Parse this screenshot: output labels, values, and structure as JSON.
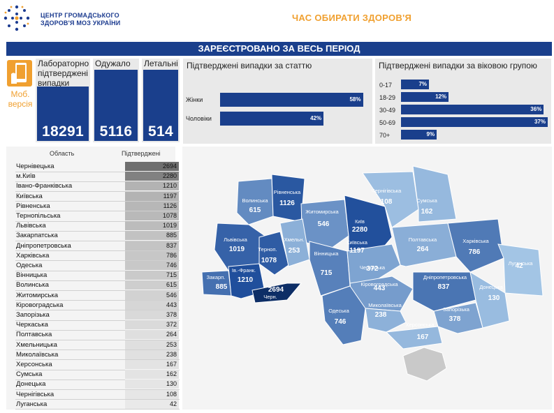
{
  "header": {
    "org_line1": "ЦЕНТР ГРОМАДСЬКОГО",
    "org_line2": "ЗДОРОВ'Я МОЗ УКРАЇНИ",
    "slogan": "ЧАС ОБИРАТИ ЗДОРОВ'Я",
    "banner": "ЗАРЕЄСТРОВАНО ЗА ВЕСЬ ПЕРІОД",
    "mobile_version": "Моб. версія"
  },
  "stats": {
    "confirmed": {
      "label": "Лабораторно підтверджені випадки",
      "value": "18291"
    },
    "recovered": {
      "label": "Одужало",
      "value": "5116"
    },
    "deaths": {
      "label": "Летальні",
      "value": "514"
    }
  },
  "colors": {
    "primary": "#1a3f8c",
    "accent": "#f0a030",
    "panel": "#e9e9e9"
  },
  "chart_data": [
    {
      "type": "bar",
      "title": "Підтверджені випадки за статтю",
      "categories": [
        "Жінки",
        "Чоловіки"
      ],
      "values": [
        58,
        42
      ],
      "value_labels": [
        "58%",
        "42%"
      ],
      "unit": "%"
    },
    {
      "type": "bar",
      "title": "Підтверджені випадки за віковою групою",
      "categories": [
        "0-17",
        "18-29",
        "30-49",
        "50-69",
        "70+"
      ],
      "values": [
        7,
        12,
        36,
        37,
        9
      ],
      "value_labels": [
        "7%",
        "12%",
        "36%",
        "37%",
        "9%"
      ],
      "unit": "%"
    },
    {
      "type": "table",
      "columns": [
        "Область",
        "Підтверджені"
      ],
      "rows": [
        [
          "Чернівецька",
          2694
        ],
        [
          "м.Київ",
          2280
        ],
        [
          "Івано-Франківська",
          1210
        ],
        [
          "Київська",
          1197
        ],
        [
          "Рівненська",
          1126
        ],
        [
          "Тернопільська",
          1078
        ],
        [
          "Львівська",
          1019
        ],
        [
          "Закарпатська",
          885
        ],
        [
          "Дніпропетровська",
          837
        ],
        [
          "Харківська",
          786
        ],
        [
          "Одеська",
          746
        ],
        [
          "Вінницька",
          715
        ],
        [
          "Волинська",
          615
        ],
        [
          "Житомирська",
          546
        ],
        [
          "Кіровоградська",
          443
        ],
        [
          "Запорізька",
          378
        ],
        [
          "Черкаська",
          372
        ],
        [
          "Полтавська",
          264
        ],
        [
          "Хмельницька",
          253
        ],
        [
          "Миколаївська",
          238
        ],
        [
          "Херсонська",
          167
        ],
        [
          "Сумська",
          162
        ],
        [
          "Донецька",
          130
        ],
        [
          "Чернігівська",
          108
        ],
        [
          "Луганська",
          42
        ]
      ]
    },
    {
      "type": "heatmap",
      "regions": [
        {
          "name": "Волинська",
          "value": 615
        },
        {
          "name": "Рівненська",
          "value": 1126
        },
        {
          "name": "Житомирська",
          "value": 546
        },
        {
          "name": "Київ",
          "value": 2280
        },
        {
          "name": "Київська",
          "value": 1197
        },
        {
          "name": "Чернігівська",
          "value": 108
        },
        {
          "name": "Сумська",
          "value": 162
        },
        {
          "name": "Львівська",
          "value": 1019
        },
        {
          "name": "Терноп.",
          "value": 1078
        },
        {
          "name": "Хмельн.",
          "value": 253
        },
        {
          "name": "Вінницька",
          "value": 715
        },
        {
          "name": "Черкаська",
          "value": 372
        },
        {
          "name": "Полтавська",
          "value": 264
        },
        {
          "name": "Харківська",
          "value": 786
        },
        {
          "name": "Луганська",
          "value": 42
        },
        {
          "name": "Закарп.",
          "value": 885
        },
        {
          "name": "Ів.-Франк.",
          "value": 1210
        },
        {
          "name": "Черн.",
          "value": 2694
        },
        {
          "name": "Кіровоградська",
          "value": 443
        },
        {
          "name": "Дніпропетровська",
          "value": 837
        },
        {
          "name": "Донецька",
          "value": 130
        },
        {
          "name": "Одеська",
          "value": 746
        },
        {
          "name": "Миколаївська",
          "value": 238
        },
        {
          "name": "Запорізька",
          "value": 378
        },
        {
          "name": "Херсонська",
          "value": 167
        }
      ]
    }
  ]
}
